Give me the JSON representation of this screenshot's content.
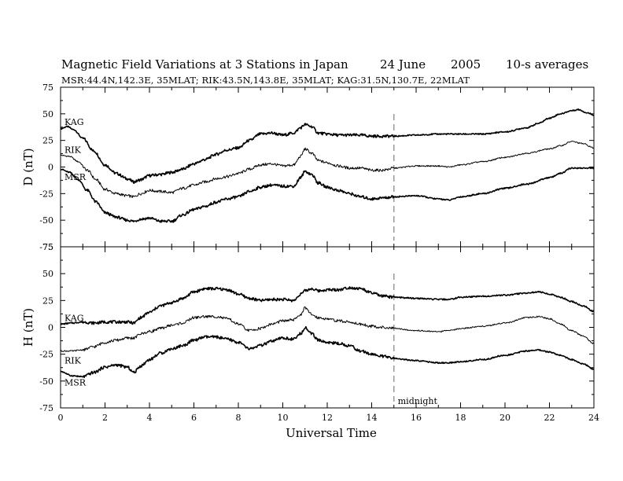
{
  "header": {
    "title": "Magnetic Field Variations at 3 Stations in Japan",
    "date": "24 June",
    "year": "2005",
    "averaging": "10-s averages",
    "subtitle": "MSR:44.4N,142.3E, 35MLAT;  RIK:43.5N,143.8E, 35MLAT;  KAG:31.5N,130.7E, 22MLAT"
  },
  "chart_data": [
    {
      "type": "line",
      "panel": "top",
      "ylabel": "D (nT)",
      "xlabel": "",
      "xlim": [
        0,
        24
      ],
      "ylim": [
        -75,
        75
      ],
      "yticks": [
        75,
        50,
        25,
        0,
        -25,
        -50,
        -75
      ],
      "series": [
        {
          "name": "KAG",
          "x": [
            0,
            0.3,
            0.6,
            1,
            1.5,
            2,
            2.5,
            3,
            3.3,
            3.6,
            4,
            4.5,
            5,
            5.5,
            6,
            6.5,
            7,
            7.5,
            8,
            8.5,
            9,
            9.5,
            10,
            10.5,
            10.8,
            11,
            11.3,
            11.6,
            12,
            12.5,
            13,
            13.5,
            14,
            14.5,
            15,
            16,
            17,
            18,
            19,
            20,
            21,
            21.5,
            22,
            22.5,
            23,
            23.3,
            23.7,
            24
          ],
          "values": [
            36,
            38,
            35,
            27,
            15,
            2,
            -6,
            -11,
            -14,
            -12,
            -8,
            -7,
            -5,
            -2,
            3,
            7,
            12,
            16,
            18,
            25,
            31,
            32,
            30,
            32,
            37,
            40,
            38,
            32,
            31,
            30,
            30,
            30,
            29,
            29,
            29,
            30,
            31,
            31,
            31,
            33,
            37,
            41,
            46,
            50,
            53,
            54,
            51,
            49
          ]
        },
        {
          "name": "RIK",
          "x": [
            0,
            0.4,
            0.8,
            1.2,
            1.6,
            2,
            2.5,
            3,
            3.3,
            3.6,
            4,
            4.5,
            5,
            5.5,
            6,
            6.5,
            7,
            7.5,
            8,
            8.5,
            9,
            9.5,
            10,
            10.5,
            10.8,
            11,
            11.3,
            11.6,
            12,
            12.5,
            13,
            13.5,
            14,
            14.5,
            15,
            16,
            17,
            17.5,
            18,
            19,
            20,
            21,
            22,
            22.5,
            23,
            23.5,
            24
          ],
          "values": [
            11,
            10,
            5,
            -3,
            -12,
            -21,
            -25,
            -27,
            -28,
            -25,
            -22,
            -23,
            -24,
            -20,
            -17,
            -14,
            -11,
            -9,
            -6,
            -2,
            2,
            3,
            1,
            2,
            10,
            17,
            13,
            6,
            4,
            1,
            -1,
            -1,
            -3,
            -3,
            -1,
            1,
            1,
            0,
            2,
            5,
            9,
            13,
            17,
            20,
            24,
            22,
            18
          ]
        },
        {
          "name": "MSR",
          "x": [
            0,
            0.4,
            0.8,
            1.2,
            1.6,
            2,
            2.5,
            3,
            3.3,
            3.6,
            4,
            4.5,
            5,
            5.5,
            6,
            6.5,
            7,
            7.5,
            8,
            8.5,
            9,
            9.5,
            10,
            10.5,
            10.8,
            11,
            11.3,
            11.6,
            12,
            12.5,
            13,
            13.5,
            14,
            14.5,
            15,
            16,
            17,
            17.5,
            18,
            19,
            20,
            21,
            22,
            22.5,
            23,
            23.5,
            24
          ],
          "values": [
            -2,
            -5,
            -12,
            -22,
            -33,
            -43,
            -47,
            -50,
            -51,
            -49,
            -48,
            -51,
            -51,
            -45,
            -40,
            -37,
            -33,
            -30,
            -28,
            -23,
            -19,
            -17,
            -18,
            -18,
            -10,
            -4,
            -7,
            -15,
            -19,
            -22,
            -25,
            -28,
            -30,
            -29,
            -28,
            -27,
            -30,
            -31,
            -28,
            -25,
            -20,
            -16,
            -10,
            -6,
            -1,
            -1,
            -1
          ]
        }
      ],
      "grid": false,
      "vline": {
        "x": 15,
        "style": "dashed"
      }
    },
    {
      "type": "line",
      "panel": "bottom",
      "ylabel": "H (nT)",
      "xlabel": "Universal Time",
      "xlim": [
        0,
        24
      ],
      "ylim": [
        -75,
        75
      ],
      "yticks": [
        75,
        50,
        25,
        0,
        -25,
        -50,
        -75
      ],
      "xticks": [
        0,
        2,
        4,
        6,
        8,
        10,
        12,
        14,
        16,
        18,
        20,
        22,
        24
      ],
      "series": [
        {
          "name": "KAG",
          "x": [
            0,
            0.5,
            1,
            1.5,
            2,
            2.5,
            3,
            3.3,
            3.6,
            4,
            4.5,
            5,
            5.5,
            6,
            6.5,
            7,
            7.5,
            8,
            8.5,
            9,
            9.5,
            10,
            10.5,
            10.8,
            11,
            11.3,
            11.6,
            12,
            12.5,
            13,
            13.5,
            14,
            14.5,
            15,
            16,
            17,
            17.5,
            18,
            19,
            20,
            21,
            21.5,
            22,
            22.5,
            23,
            23.5,
            24
          ],
          "values": [
            3,
            4,
            5,
            4,
            5,
            5,
            5,
            4,
            9,
            14,
            20,
            23,
            27,
            33,
            36,
            36,
            35,
            31,
            27,
            25,
            26,
            26,
            25,
            31,
            34,
            36,
            34,
            35,
            35,
            37,
            36,
            32,
            29,
            28,
            27,
            26,
            26,
            28,
            29,
            30,
            32,
            33,
            31,
            28,
            24,
            20,
            15
          ]
        },
        {
          "name": "RIK",
          "x": [
            0,
            0.5,
            1,
            1.5,
            2,
            2.5,
            3,
            3.3,
            3.6,
            4,
            4.5,
            5,
            5.5,
            6,
            6.5,
            7,
            7.5,
            8,
            8.5,
            9,
            9.5,
            10,
            10.5,
            10.8,
            11,
            11.3,
            11.6,
            12,
            12.5,
            13,
            13.5,
            14,
            14.5,
            15,
            16,
            17,
            17.5,
            18,
            19,
            20,
            21,
            21.5,
            22,
            22.5,
            23,
            23.5,
            24
          ],
          "values": [
            -22,
            -22,
            -21,
            -18,
            -14,
            -12,
            -10,
            -10,
            -6,
            -4,
            -1,
            2,
            4,
            9,
            10,
            10,
            8,
            3,
            -3,
            -1,
            3,
            6,
            7,
            12,
            18,
            12,
            9,
            8,
            6,
            5,
            3,
            1,
            0,
            -1,
            -3,
            -4,
            -3,
            -1,
            1,
            4,
            9,
            10,
            8,
            3,
            -3,
            -8,
            -15
          ]
        },
        {
          "name": "MSR",
          "x": [
            0,
            0.5,
            1,
            1.5,
            2,
            2.5,
            3,
            3.3,
            3.6,
            4,
            4.5,
            5,
            5.5,
            6,
            6.5,
            7,
            7.5,
            8,
            8.5,
            9,
            9.5,
            10,
            10.5,
            10.8,
            11,
            11.3,
            11.6,
            12,
            12.5,
            13,
            13.5,
            14,
            14.5,
            15,
            16,
            17,
            17.5,
            18,
            19,
            20,
            21,
            21.5,
            22,
            22.5,
            23,
            23.5,
            24
          ],
          "values": [
            -41,
            -45,
            -46,
            -42,
            -37,
            -35,
            -37,
            -42,
            -36,
            -30,
            -24,
            -20,
            -17,
            -12,
            -9,
            -9,
            -11,
            -14,
            -20,
            -17,
            -13,
            -10,
            -11,
            -6,
            0,
            -6,
            -12,
            -14,
            -15,
            -17,
            -22,
            -25,
            -27,
            -29,
            -31,
            -33,
            -33,
            -32,
            -30,
            -26,
            -22,
            -21,
            -23,
            -26,
            -30,
            -34,
            -39
          ]
        }
      ],
      "grid": false,
      "vline": {
        "x": 15,
        "style": "dashed"
      },
      "annotation": "midnight"
    }
  ],
  "colors": {
    "axis": "#000000",
    "line": "#000000",
    "vline": "#999999"
  }
}
